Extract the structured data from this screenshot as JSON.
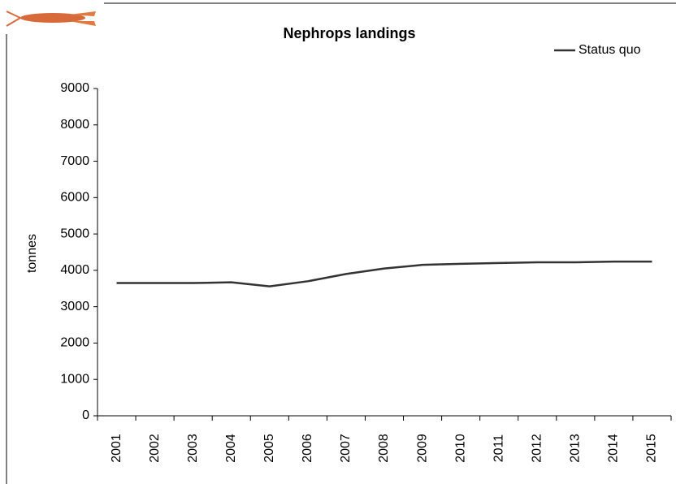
{
  "chart_data": {
    "type": "line",
    "title": "Nephrops landings",
    "y_label": "tonnes",
    "categories": [
      "2001",
      "2002",
      "2003",
      "2004",
      "2005",
      "2006",
      "2007",
      "2008",
      "2009",
      "2010",
      "2011",
      "2012",
      "2013",
      "2014",
      "2015"
    ],
    "series": [
      {
        "name": "Status quo",
        "color": "#333333",
        "values": [
          3650,
          3650,
          3650,
          3670,
          3560,
          3700,
          3900,
          4050,
          4150,
          4180,
          4200,
          4220,
          4220,
          4240,
          4240
        ]
      }
    ],
    "ylim": [
      0,
      9000
    ],
    "yticks": [
      0,
      1000,
      2000,
      3000,
      4000,
      5000,
      6000,
      7000,
      8000,
      9000
    ],
    "legend": "top-right"
  }
}
